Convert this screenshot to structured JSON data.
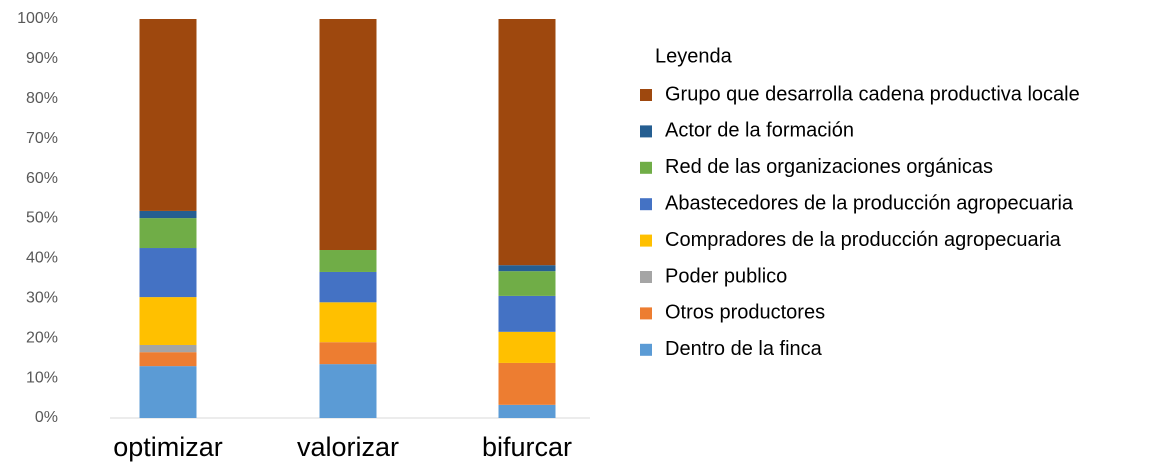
{
  "chart_data": {
    "type": "stacked_bar",
    "legend_title": "Leyenda",
    "categories": [
      "optimizar",
      "valorizar",
      "bifurcar"
    ],
    "series": [
      {
        "name": "Dentro de la finca",
        "color": "#5b9bd5",
        "values": [
          13,
          13.5,
          3.3
        ]
      },
      {
        "name": "Otros productores",
        "color": "#ed7d31",
        "values": [
          3.5,
          5.5,
          10.5
        ]
      },
      {
        "name": "Poder publico",
        "color": "#a5a5a5",
        "values": [
          1.8,
          0,
          0
        ]
      },
      {
        "name": "Compradores de la producción agropecuaria",
        "color": "#ffc000",
        "values": [
          12,
          10,
          7.8
        ]
      },
      {
        "name": "Abastecedores de la producción agropecuaria",
        "color": "#4472c4",
        "values": [
          12.3,
          7.6,
          9
        ]
      },
      {
        "name": "Red de las organizaciones orgánicas",
        "color": "#70ad47",
        "values": [
          7.5,
          5.5,
          6.2
        ]
      },
      {
        "name": "Actor de la formación",
        "color": "#255e91",
        "values": [
          1.8,
          0,
          1.5
        ]
      },
      {
        "name": "Grupo que desarrolla cadena productiva locale",
        "color": "#9e480e",
        "values": [
          48.1,
          57.9,
          61.7
        ]
      }
    ],
    "ylim": [
      0,
      100
    ],
    "yticks": [
      {
        "value": 0,
        "label": "0%"
      },
      {
        "value": 10,
        "label": "10%"
      },
      {
        "value": 20,
        "label": "20%"
      },
      {
        "value": 30,
        "label": "30%"
      },
      {
        "value": 40,
        "label": "40%"
      },
      {
        "value": 50,
        "label": "50%"
      },
      {
        "value": 60,
        "label": "60%"
      },
      {
        "value": 70,
        "label": "70%"
      },
      {
        "value": 80,
        "label": "80%"
      },
      {
        "value": 90,
        "label": "90%"
      },
      {
        "value": 100,
        "label": "100%"
      }
    ],
    "grid": false,
    "legend": "right"
  }
}
